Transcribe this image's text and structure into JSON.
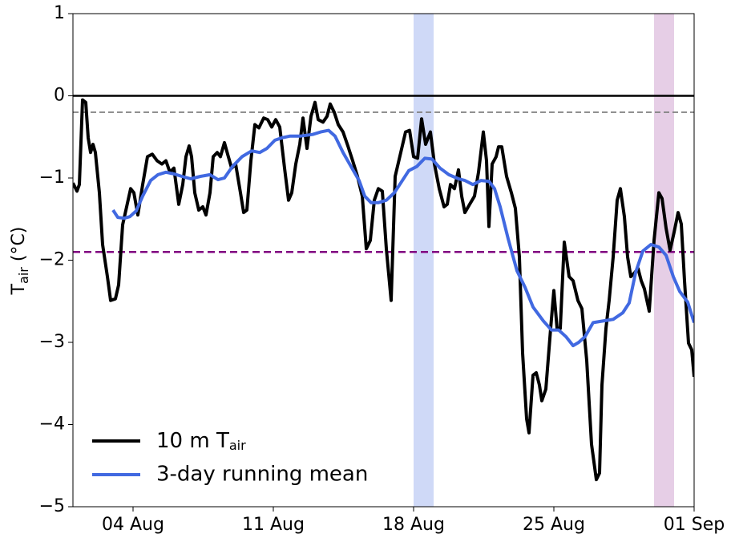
{
  "chart_data": {
    "type": "line",
    "ylabel": "T_air (°C)",
    "xlim": [
      1,
      32
    ],
    "xticks": [
      {
        "value": 4,
        "label": "04 Aug"
      },
      {
        "value": 11,
        "label": "11 Aug"
      },
      {
        "value": 18,
        "label": "18 Aug"
      },
      {
        "value": 25,
        "label": "25 Aug"
      },
      {
        "value": 32,
        "label": "01 Sep"
      }
    ],
    "ylim": [
      -5,
      1
    ],
    "yticks": [
      {
        "value": -5,
        "label": "−5"
      },
      {
        "value": -4,
        "label": "−4"
      },
      {
        "value": -3,
        "label": "−3"
      },
      {
        "value": -2,
        "label": "−2"
      },
      {
        "value": -1,
        "label": "−1"
      },
      0,
      1
    ],
    "legend": "lower left",
    "spans": [
      {
        "xlim": [
          18,
          19
        ],
        "color": "#4169e1"
      },
      {
        "xlim": [
          30,
          31
        ],
        "color": "#9b3b9b"
      }
    ],
    "hlines": [
      {
        "y": 0,
        "color": "#000000",
        "style": "solid"
      },
      {
        "y": -0.2,
        "color": "#808080",
        "style": "dashed"
      },
      {
        "y": -1.9,
        "color": "#800080",
        "style": "dashed"
      }
    ],
    "series": [
      {
        "name": "10 m T_air",
        "color": "#000000",
        "x": [
          1.0,
          1.2,
          1.32,
          1.48,
          1.64,
          1.76,
          1.88,
          2.0,
          2.12,
          2.32,
          2.48,
          2.72,
          2.88,
          3.12,
          3.28,
          3.48,
          3.68,
          3.88,
          4.04,
          4.24,
          4.48,
          4.72,
          4.96,
          5.2,
          5.44,
          5.64,
          5.84,
          6.04,
          6.28,
          6.48,
          6.64,
          6.8,
          6.92,
          7.08,
          7.28,
          7.48,
          7.64,
          7.84,
          8.0,
          8.2,
          8.36,
          8.56,
          8.72,
          8.92,
          9.12,
          9.36,
          9.52,
          9.68,
          9.88,
          10.08,
          10.28,
          10.52,
          10.72,
          10.92,
          11.12,
          11.32,
          11.56,
          11.76,
          11.92,
          12.12,
          12.32,
          12.48,
          12.68,
          12.88,
          13.08,
          13.24,
          13.48,
          13.68,
          13.84,
          14.04,
          14.24,
          14.48,
          14.72,
          14.96,
          15.2,
          15.44,
          15.64,
          15.84,
          16.04,
          16.24,
          16.44,
          16.64,
          16.88,
          17.08,
          17.36,
          17.6,
          17.8,
          18.0,
          18.2,
          18.4,
          18.6,
          18.84,
          19.04,
          19.28,
          19.52,
          19.68,
          19.84,
          20.04,
          20.24,
          20.4,
          20.56,
          20.8,
          21.04,
          21.24,
          21.48,
          21.64,
          21.76,
          21.92,
          22.12,
          22.24,
          22.4,
          22.64,
          22.88,
          23.08,
          23.28,
          23.44,
          23.64,
          23.76,
          23.96,
          24.12,
          24.28,
          24.4,
          24.6,
          24.84,
          25.0,
          25.16,
          25.32,
          25.52,
          25.76,
          25.96,
          26.2,
          26.4,
          26.64,
          26.88,
          27.12,
          27.28,
          27.4,
          27.6,
          27.76,
          27.96,
          28.16,
          28.32,
          28.52,
          28.68,
          28.84,
          29.04,
          29.2,
          29.36,
          29.52,
          29.76,
          30.0,
          30.24,
          30.4,
          30.6,
          30.8,
          31.0,
          31.2,
          31.36,
          31.52,
          31.72,
          31.88,
          32.0
        ],
        "values": [
          -1.06,
          -1.16,
          -1.08,
          -0.05,
          -0.08,
          -0.51,
          -0.69,
          -0.59,
          -0.69,
          -1.18,
          -1.81,
          -2.2,
          -2.49,
          -2.47,
          -2.3,
          -1.57,
          -1.35,
          -1.13,
          -1.18,
          -1.45,
          -1.08,
          -0.74,
          -0.71,
          -0.79,
          -0.83,
          -0.79,
          -0.93,
          -0.88,
          -1.32,
          -1.08,
          -0.74,
          -0.61,
          -0.74,
          -1.18,
          -1.39,
          -1.35,
          -1.45,
          -1.18,
          -0.74,
          -0.69,
          -0.74,
          -0.57,
          -0.71,
          -0.88,
          -0.83,
          -1.18,
          -1.42,
          -1.39,
          -0.79,
          -0.35,
          -0.39,
          -0.27,
          -0.29,
          -0.38,
          -0.29,
          -0.38,
          -0.88,
          -1.27,
          -1.18,
          -0.83,
          -0.59,
          -0.27,
          -0.64,
          -0.25,
          -0.08,
          -0.29,
          -0.32,
          -0.25,
          -0.1,
          -0.2,
          -0.35,
          -0.44,
          -0.61,
          -0.79,
          -0.98,
          -1.22,
          -1.86,
          -1.76,
          -1.27,
          -1.13,
          -1.16,
          -1.86,
          -2.49,
          -0.98,
          -0.69,
          -0.44,
          -0.42,
          -0.74,
          -0.76,
          -0.28,
          -0.59,
          -0.44,
          -0.83,
          -1.13,
          -1.35,
          -1.32,
          -1.08,
          -1.13,
          -0.9,
          -1.22,
          -1.42,
          -1.32,
          -1.22,
          -0.93,
          -0.44,
          -0.79,
          -1.59,
          -0.83,
          -0.74,
          -0.62,
          -0.62,
          -0.98,
          -1.18,
          -1.37,
          -1.96,
          -3.13,
          -3.93,
          -4.1,
          -3.4,
          -3.37,
          -3.52,
          -3.71,
          -3.57,
          -2.83,
          -2.37,
          -2.83,
          -2.83,
          -1.78,
          -2.2,
          -2.25,
          -2.49,
          -2.59,
          -3.22,
          -4.24,
          -4.67,
          -4.59,
          -3.52,
          -2.83,
          -2.49,
          -1.96,
          -1.27,
          -1.13,
          -1.47,
          -1.96,
          -2.2,
          -2.15,
          -2.1,
          -2.25,
          -2.35,
          -2.62,
          -1.76,
          -1.18,
          -1.25,
          -1.61,
          -1.88,
          -1.66,
          -1.42,
          -1.56,
          -2.25,
          -3.01,
          -3.09,
          -3.42
        ]
      },
      {
        "name": "3-day running mean",
        "color": "#4169e1",
        "x": [
          3.0,
          3.24,
          3.56,
          3.84,
          4.16,
          4.48,
          4.88,
          5.24,
          5.64,
          6.04,
          6.44,
          6.88,
          7.36,
          7.84,
          8.24,
          8.56,
          8.96,
          9.44,
          9.92,
          10.32,
          10.68,
          11.08,
          11.44,
          11.84,
          12.36,
          12.96,
          13.36,
          13.76,
          14.08,
          14.48,
          14.88,
          15.28,
          15.56,
          15.88,
          16.24,
          16.64,
          17.04,
          17.36,
          17.76,
          18.16,
          18.56,
          18.92,
          19.32,
          19.76,
          20.24,
          20.56,
          20.96,
          21.36,
          21.76,
          22.04,
          22.32,
          22.72,
          23.16,
          23.56,
          23.96,
          24.48,
          24.88,
          25.24,
          25.6,
          25.96,
          26.24,
          26.56,
          26.96,
          27.44,
          27.96,
          28.44,
          28.76,
          29.08,
          29.44,
          29.84,
          30.24,
          30.6,
          30.96,
          31.28,
          31.68,
          32.0
        ],
        "values": [
          -1.39,
          -1.48,
          -1.49,
          -1.47,
          -1.4,
          -1.22,
          -1.03,
          -0.96,
          -0.93,
          -0.95,
          -0.98,
          -1.01,
          -0.98,
          -0.96,
          -1.02,
          -1.0,
          -0.86,
          -0.74,
          -0.67,
          -0.69,
          -0.64,
          -0.54,
          -0.51,
          -0.49,
          -0.49,
          -0.47,
          -0.44,
          -0.42,
          -0.49,
          -0.69,
          -0.86,
          -1.03,
          -1.22,
          -1.3,
          -1.3,
          -1.27,
          -1.18,
          -1.06,
          -0.91,
          -0.86,
          -0.76,
          -0.77,
          -0.88,
          -0.96,
          -1.01,
          -1.03,
          -1.08,
          -1.03,
          -1.04,
          -1.13,
          -1.35,
          -1.74,
          -2.13,
          -2.33,
          -2.57,
          -2.74,
          -2.85,
          -2.85,
          -2.93,
          -3.04,
          -3.0,
          -2.93,
          -2.76,
          -2.74,
          -2.72,
          -2.64,
          -2.52,
          -2.15,
          -1.89,
          -1.81,
          -1.84,
          -1.94,
          -2.2,
          -2.38,
          -2.51,
          -2.76
        ]
      }
    ]
  }
}
